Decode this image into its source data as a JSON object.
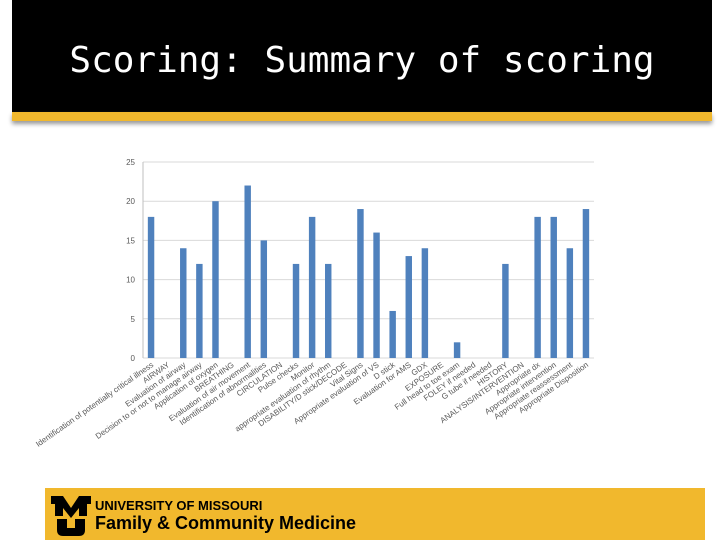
{
  "slide": {
    "title": "Scoring: Summary of scoring",
    "footer_org": "UNIVERSITY OF MISSOURI",
    "footer_dept": "Family & Community Medicine"
  },
  "chart_data": {
    "type": "bar",
    "color": "#4f81bd",
    "grid": true,
    "categories": [
      "Identification of potentially critical illness",
      "AIRWAY",
      "Evaluation of airway",
      "Decision to or not to manage airway",
      "Application of oxygen",
      "BREATHING",
      "Evaluation of air movement",
      "Identification of abnormalities",
      "CIRCULATION",
      "Pulse checks",
      "Monitor",
      "appropriate evaluation of rhythm",
      "DISABILITY/D stick/DECODE",
      "Vital Signs",
      "Appropriate evaluation of VS",
      "D stick",
      "Evaluation for AMS",
      "GDX",
      "EXPOSURE",
      "Full head to toe exam",
      "FOLEY if needed",
      "G tube if needed",
      "HISTORY",
      "ANALYSIS/INTERVENTION",
      "Appropriate dx",
      "Appropriate intervention",
      "Appropriate reassessment",
      "Appropriate Disposition"
    ],
    "values": [
      18,
      0,
      14,
      12,
      20,
      0,
      22,
      15,
      0,
      12,
      18,
      12,
      0,
      19,
      16,
      6,
      13,
      14,
      0,
      2,
      0,
      0,
      12,
      0,
      18,
      18,
      14,
      19
    ],
    "ylim": [
      0,
      25
    ],
    "yticks": [
      0,
      5,
      10,
      15,
      20,
      25
    ]
  }
}
